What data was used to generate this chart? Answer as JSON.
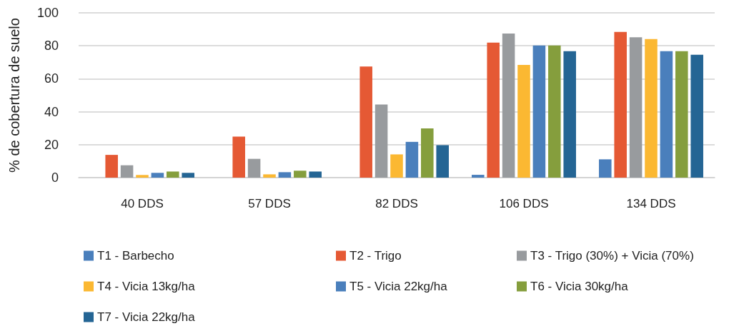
{
  "chart_data": {
    "type": "bar",
    "ylabel": "% de cobertura de suelo",
    "categories": [
      "40 DDS",
      "57 DDS",
      "82 DDS",
      "106 DDS",
      "134 DDS"
    ],
    "series": [
      {
        "name": "T1 - Barbecho",
        "color": "#4a7fbc",
        "values": [
          0,
          0,
          0,
          1.7,
          11.1
        ]
      },
      {
        "name": "T2 - Trigo",
        "color": "#e55934",
        "values": [
          13.8,
          24.9,
          67.4,
          81.9,
          88.4
        ]
      },
      {
        "name": "T3 - Trigo (30%) + Vicia (70%)",
        "color": "#989b9e",
        "values": [
          7.5,
          11.4,
          44.4,
          87.4,
          85.2
        ]
      },
      {
        "name": "T4 - Vicia 13kg/ha",
        "color": "#fbb832",
        "values": [
          1.6,
          2,
          14.1,
          68.4,
          84.1
        ]
      },
      {
        "name": "T5 - Vicia 22kg/ha",
        "color": "#4a7fbc",
        "values": [
          2.9,
          3.3,
          21.7,
          80.2,
          76.7
        ]
      },
      {
        "name": "T6 - Vicia 30kg/ha",
        "color": "#859e3d",
        "values": [
          3.7,
          4.2,
          29.9,
          80.2,
          76.7
        ]
      },
      {
        "name": "T7 - Vicia 22kg/ha",
        "color": "#246594",
        "values": [
          2.9,
          3.7,
          19.7,
          76.7,
          74.6
        ]
      }
    ],
    "ylim": [
      0,
      100
    ],
    "yticks": [
      0,
      20,
      40,
      60,
      80,
      100
    ],
    "grid": "y",
    "legend": "bottom"
  }
}
